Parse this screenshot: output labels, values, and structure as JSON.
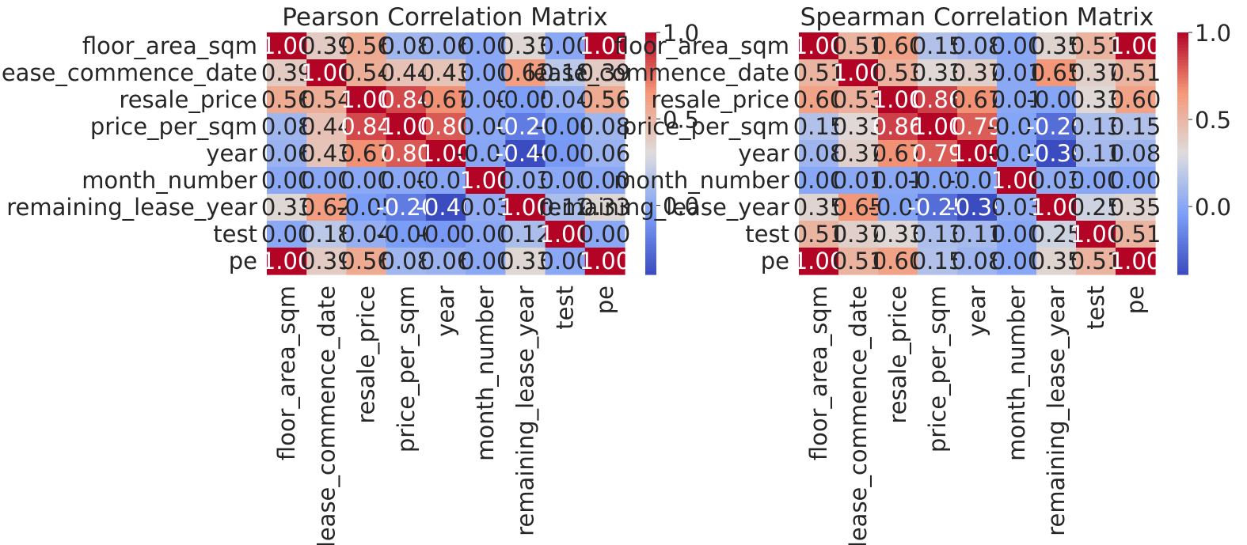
{
  "chart_data": [
    {
      "type": "heatmap",
      "title": "Pearson Correlation Matrix",
      "rows": [
        "floor_area_sqm",
        "lease_commence_date",
        "resale_price",
        "price_per_sqm",
        "year",
        "month_number",
        "remaining_lease_year",
        "test",
        "pe"
      ],
      "columns": [
        "floor_area_sqm",
        "lease_commence_date",
        "resale_price",
        "price_per_sqm",
        "year",
        "month_number",
        "remaining_lease_year",
        "test",
        "pe"
      ],
      "values": [
        [
          1.0,
          0.39,
          0.56,
          0.08,
          0.06,
          0.0,
          0.33,
          0.0,
          1.0
        ],
        [
          0.39,
          1.0,
          0.54,
          0.44,
          0.43,
          0.0,
          0.62,
          0.18,
          0.39
        ],
        [
          0.56,
          0.54,
          1.0,
          0.84,
          0.67,
          0.0,
          -0.05,
          0.04,
          0.56
        ],
        [
          0.08,
          0.44,
          0.84,
          1.0,
          0.8,
          0.0,
          -0.2,
          -0.06,
          0.08
        ],
        [
          0.06,
          0.43,
          0.67,
          0.8,
          1.0,
          -0.01,
          -0.4,
          -0.07,
          0.06
        ],
        [
          0.0,
          0.0,
          0.0,
          0.0,
          -0.01,
          1.0,
          0.03,
          0.0,
          0.0
        ],
        [
          0.33,
          0.62,
          -0.05,
          -0.2,
          -0.4,
          0.03,
          1.0,
          0.12,
          0.33
        ],
        [
          0.0,
          0.18,
          0.04,
          -0.06,
          -0.07,
          0.0,
          0.12,
          1.0,
          0.0
        ],
        [
          1.0,
          0.39,
          0.56,
          0.08,
          0.06,
          0.0,
          0.33,
          0.0,
          1.0
        ]
      ],
      "colorbar": {
        "min": -0.4,
        "max": 1.0,
        "ticks": [
          1.0,
          0.5,
          0.0
        ],
        "tick_labels": [
          "1.0",
          "0.5",
          "0.0"
        ]
      },
      "colormap": "coolwarm",
      "annotated": true
    },
    {
      "type": "heatmap",
      "title": "Spearman Correlation Matrix",
      "rows": [
        "floor_area_sqm",
        "lease_commence_date",
        "resale_price",
        "price_per_sqm",
        "year",
        "month_number",
        "remaining_lease_year",
        "test",
        "pe"
      ],
      "columns": [
        "floor_area_sqm",
        "lease_commence_date",
        "resale_price",
        "price_per_sqm",
        "year",
        "month_number",
        "remaining_lease_year",
        "test",
        "pe"
      ],
      "values": [
        [
          1.0,
          0.51,
          0.6,
          0.15,
          0.08,
          0.0,
          0.35,
          0.51,
          1.0
        ],
        [
          0.51,
          1.0,
          0.53,
          0.33,
          0.37,
          0.01,
          0.65,
          0.37,
          0.51
        ],
        [
          0.6,
          0.53,
          1.0,
          0.86,
          0.67,
          0.01,
          -0.01,
          0.33,
          0.6
        ],
        [
          0.15,
          0.33,
          0.86,
          1.0,
          0.79,
          -0.01,
          -0.25,
          0.13,
          0.15
        ],
        [
          0.08,
          0.37,
          0.67,
          0.79,
          1.0,
          -0.01,
          -0.39,
          0.11,
          0.08
        ],
        [
          0.0,
          0.01,
          0.01,
          -0.01,
          -0.01,
          1.0,
          0.03,
          0.0,
          0.0
        ],
        [
          0.35,
          0.65,
          -0.01,
          -0.25,
          -0.39,
          0.03,
          1.0,
          0.25,
          0.35
        ],
        [
          0.51,
          0.37,
          0.33,
          0.13,
          0.11,
          0.0,
          0.25,
          1.0,
          0.51
        ],
        [
          1.0,
          0.51,
          0.6,
          0.15,
          0.08,
          0.0,
          0.35,
          0.51,
          1.0
        ]
      ],
      "colorbar": {
        "min": -0.39,
        "max": 1.0,
        "ticks": [
          1.0,
          0.5,
          0.0
        ],
        "tick_labels": [
          "1.0",
          "0.5",
          "0.0"
        ]
      },
      "colormap": "coolwarm",
      "annotated": true
    }
  ]
}
